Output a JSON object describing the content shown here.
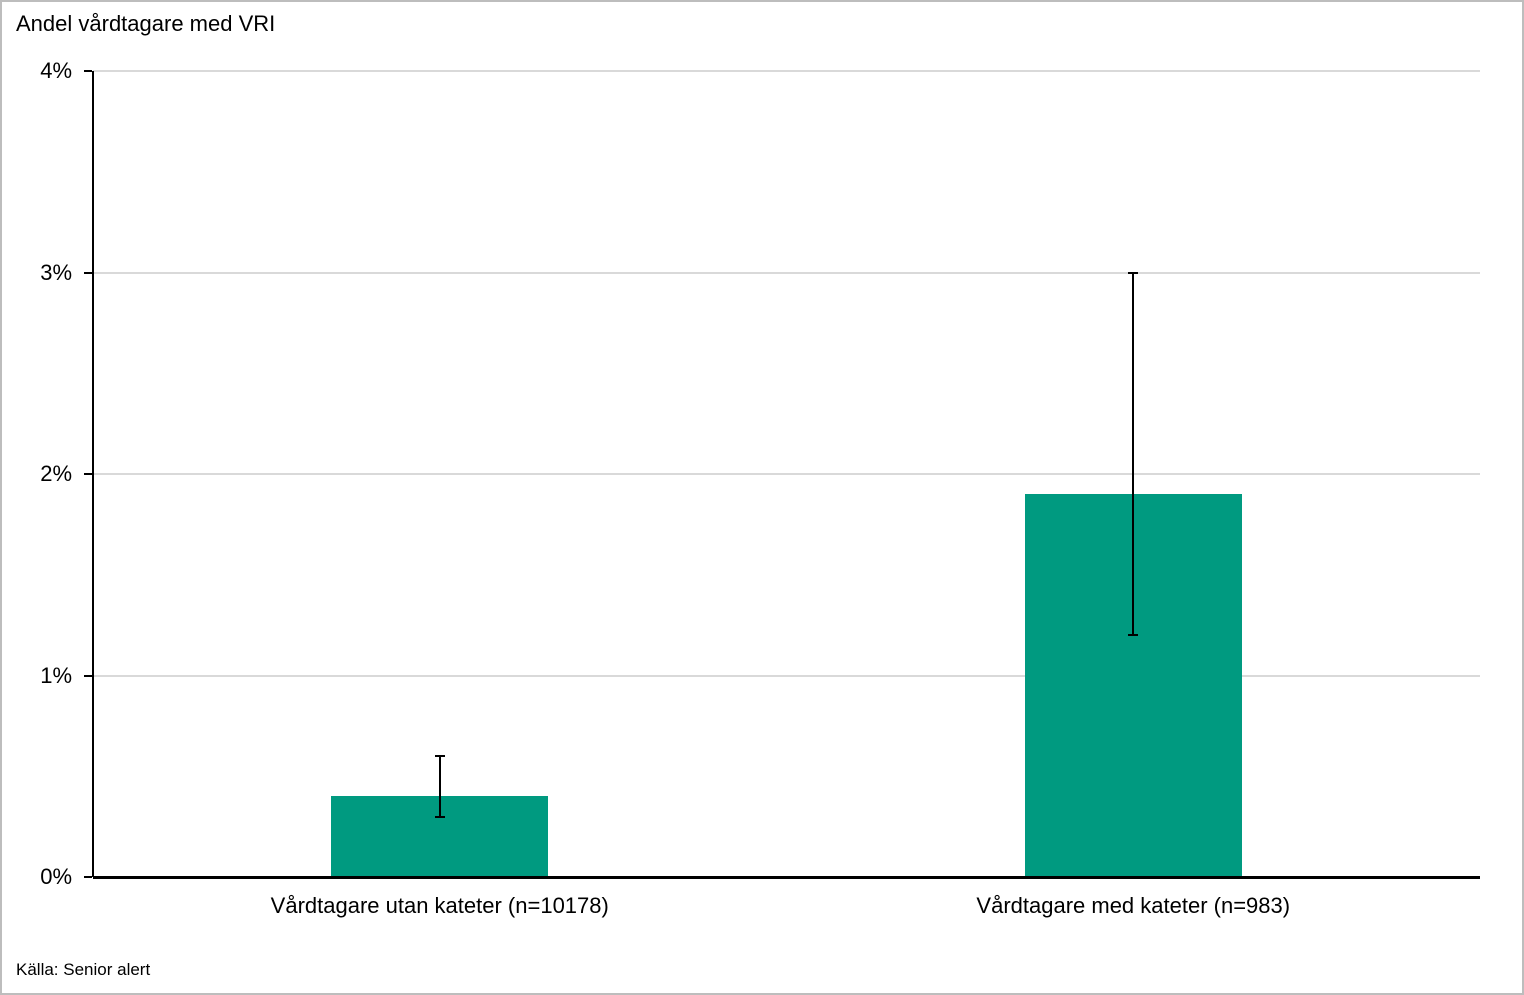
{
  "colors": {
    "bar": "#009A80",
    "gridline": "#D9D9D9",
    "axis": "#000000",
    "error_bar": "#000000",
    "frame_border": "#BDBDBD",
    "background": "#FFFFFF",
    "text": "#000000"
  },
  "chart_data": {
    "type": "bar",
    "title": "Andel vårdtagare med VRI",
    "categories": [
      "Vårdtagare utan kateter (n=10178)",
      "Vårdtagare med kateter (n=983)"
    ],
    "values": [
      0.4,
      1.9
    ],
    "value_unit": "%",
    "errors": [
      {
        "low": 0.3,
        "high": 0.6
      },
      {
        "low": 1.2,
        "high": 3.0
      }
    ],
    "xlabel": "",
    "ylabel": "Andel vårdtagare med VRI",
    "ylim": [
      0,
      4
    ],
    "ytick_values": [
      0,
      1,
      2,
      3,
      4
    ],
    "ytick_labels": [
      "0%",
      "1%",
      "2%",
      "3%",
      "4%"
    ],
    "grid": "horizontal",
    "legend": "none",
    "bar_color": "#009A80",
    "source": "Källa: Senior alert"
  }
}
